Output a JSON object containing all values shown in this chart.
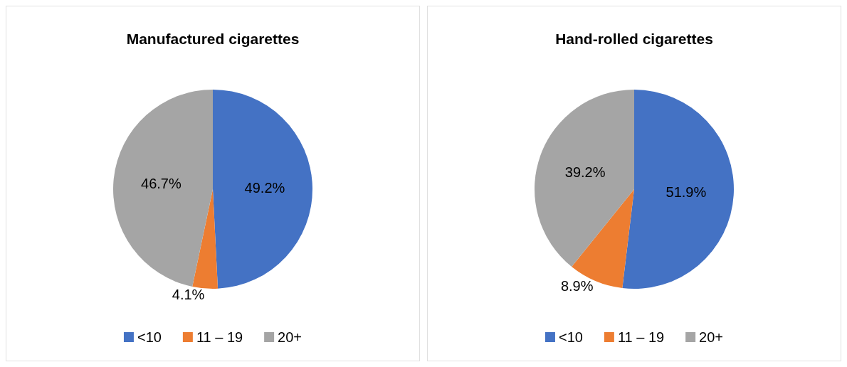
{
  "chart_data": [
    {
      "type": "pie",
      "title": "Manufactured cigarettes",
      "categories": [
        "<10",
        "11 – 19",
        "20+"
      ],
      "values": [
        49.2,
        4.1,
        46.7
      ],
      "value_labels": [
        "49.2%",
        "4.1%",
        "46.7%"
      ],
      "colors": [
        "#4472c4",
        "#ed7d31",
        "#a5a5a5"
      ],
      "legend": "bottom"
    },
    {
      "type": "pie",
      "title": "Hand-rolled cigarettes",
      "categories": [
        "<10",
        "11 – 19",
        "20+"
      ],
      "values": [
        51.9,
        8.9,
        39.2
      ],
      "value_labels": [
        "51.9%",
        "8.9%",
        "39.2%"
      ],
      "colors": [
        "#4472c4",
        "#ed7d31",
        "#a5a5a5"
      ],
      "legend": "bottom"
    }
  ]
}
